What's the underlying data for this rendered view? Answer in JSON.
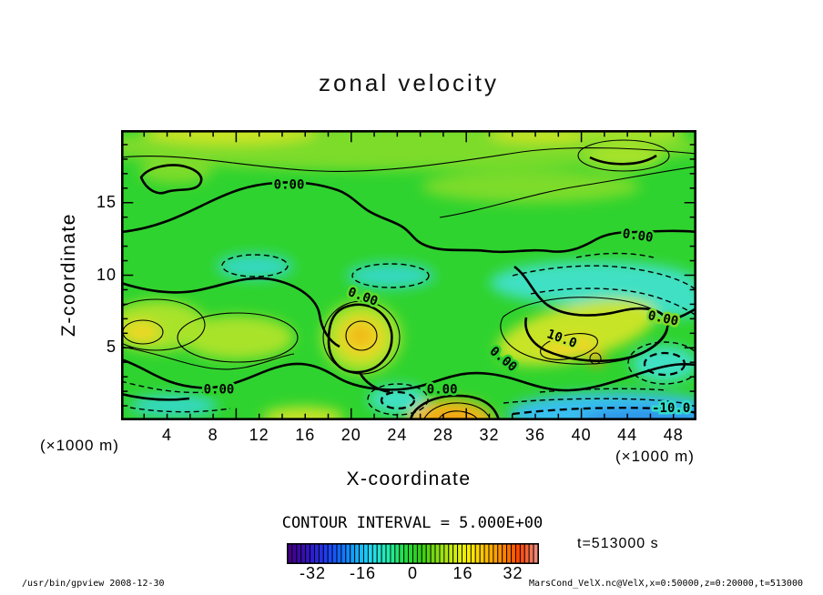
{
  "title": "zonal velocity",
  "axes": {
    "x_label": "X-coordinate",
    "y_label": "Z-coordinate",
    "x_units": "(×1000 m)",
    "y_units": "(×1000 m)"
  },
  "annotations": {
    "contour_interval_text": "CONTOUR INTERVAL = 5.000E+00",
    "time_text": "t=513000 s"
  },
  "footer": {
    "left": "/usr/bin/gpview  2008-12-30",
    "right": "MarsCond_VelX.nc@VelX,x=0:50000,z=0:20000,t=513000"
  },
  "chart_data": {
    "type": "filled_contour",
    "title": "zonal velocity",
    "xlabel": "X-coordinate",
    "ylabel": "Z-coordinate",
    "x_units_scale": "(×1000 m)",
    "z_units_scale": "(×1000 m)",
    "xlim": [
      0,
      50
    ],
    "zlim": [
      0,
      20
    ],
    "x_ticks_labeled": [
      4,
      8,
      12,
      16,
      20,
      24,
      28,
      32,
      36,
      40,
      44,
      48
    ],
    "z_ticks_labeled": [
      5,
      10,
      15
    ],
    "contour_interval": 5.0,
    "variable": "zonal velocity (m/s)",
    "time_seconds": 513000,
    "contour_labels": [
      {
        "text": "0.00",
        "x": 14.6,
        "z": 16.2,
        "rot": 0,
        "halo": "#2fd32f"
      },
      {
        "text": "0.00",
        "x": 44.9,
        "z": 12.7,
        "rot": 8,
        "halo": "#2fd32f"
      },
      {
        "text": "0.00",
        "x": 21.0,
        "z": 8.5,
        "rot": 20,
        "halo": "#5ade2e"
      },
      {
        "text": "0.00",
        "x": 47.1,
        "z": 7.0,
        "rot": 12,
        "halo": "#7fdc2c"
      },
      {
        "text": "10.0",
        "x": 38.3,
        "z": 5.6,
        "rot": 20,
        "halo": "#c8e428"
      },
      {
        "text": "0.00",
        "x": 33.2,
        "z": 4.2,
        "rot": 40,
        "halo": "#2fd32f"
      },
      {
        "text": "0.00",
        "x": 8.5,
        "z": 2.1,
        "rot": 0,
        "halo": "#2fd32f"
      },
      {
        "text": "0.00",
        "x": 27.9,
        "z": 2.1,
        "rot": 0,
        "halo": "#2fd32f"
      },
      {
        "text": "-10.0",
        "x": 47.8,
        "z": 0.8,
        "rot": 0,
        "halo": "#35dcc8"
      }
    ],
    "grid_estimate": {
      "comment": "approx zonal velocity (m/s) read from fill colors; rows top to bottom",
      "x": [
        0,
        4,
        8,
        12,
        16,
        20,
        24,
        28,
        32,
        36,
        40,
        44,
        48
      ],
      "z_rows": [
        18,
        14,
        10,
        6,
        2
      ],
      "values": [
        [
          5,
          6,
          7,
          6,
          5,
          5,
          6,
          7,
          8,
          7,
          6,
          5,
          4
        ],
        [
          3,
          2,
          3,
          4,
          4,
          3,
          4,
          5,
          5,
          4,
          3,
          2,
          2
        ],
        [
          0,
          -1,
          -3,
          -2,
          0,
          -2,
          -3,
          -1,
          -2,
          -3,
          -4,
          -6,
          -5
        ],
        [
          7,
          6,
          8,
          6,
          10,
          13,
          -2,
          -4,
          5,
          12,
          10,
          -3,
          -5
        ],
        [
          2,
          4,
          7,
          3,
          -4,
          2,
          15,
          22,
          3,
          -5,
          -12,
          -16,
          -14
        ]
      ]
    },
    "palette": {
      "base": "#2fd32f",
      "light": "#7ddc2c",
      "lighter": "#a8e32a",
      "yellow_green": "#c8e428",
      "yellow": "#ecd828",
      "gold": "#f0b818",
      "orange": "#f09010",
      "cyan": "#3fe0c4",
      "teal": "#35d8c0",
      "sky": "#38c0f0",
      "blue": "#2f96ea"
    },
    "colorbar": {
      "min": -40,
      "max": 40,
      "ticks": [
        -32,
        -16,
        0,
        16,
        32
      ],
      "segments": 56,
      "colors": [
        "#440088",
        "#3311bb",
        "#2233ee",
        "#1166ff",
        "#11aaff",
        "#22ddee",
        "#22eeaa",
        "#22dd44",
        "#33cc11",
        "#88dd11",
        "#ccee11",
        "#ffee00",
        "#ffbb00",
        "#ff8800",
        "#ff4400",
        "#ee8877"
      ]
    }
  }
}
